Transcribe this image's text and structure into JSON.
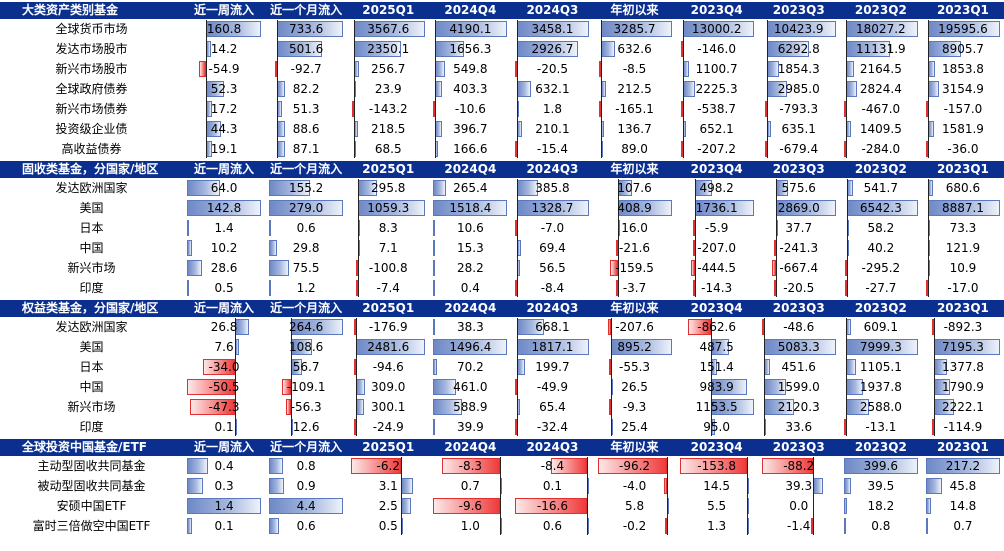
{
  "columns": [
    "近一周流入",
    "近一个月流入",
    "2025Q1",
    "2024Q4",
    "2024Q3",
    "年初以来",
    "2023Q4",
    "2023Q3",
    "2023Q2",
    "2023Q1"
  ],
  "sections": [
    {
      "title": "大类资产类别基金",
      "rows": [
        {
          "label": "全球货币市场",
          "values": [
            160.8,
            733.6,
            3567.6,
            4190.1,
            3458.1,
            3285.7,
            13000.2,
            10423.9,
            18027.2,
            19595.6
          ]
        },
        {
          "label": "发达市场股市",
          "values": [
            14.2,
            501.6,
            2350.1,
            1656.3,
            2926.7,
            632.6,
            -146.0,
            6292.8,
            11131.9,
            8905.7
          ]
        },
        {
          "label": "新兴市场股市",
          "values": [
            -54.9,
            -92.7,
            256.7,
            549.8,
            -20.5,
            -8.5,
            1100.7,
            1854.3,
            2164.5,
            1853.8
          ]
        },
        {
          "label": "全球政府债券",
          "values": [
            52.3,
            82.2,
            23.9,
            403.3,
            632.1,
            212.5,
            2225.3,
            2985.0,
            2824.4,
            3154.9
          ]
        },
        {
          "label": "新兴市场债券",
          "values": [
            17.2,
            51.3,
            -143.2,
            -10.6,
            1.8,
            -165.1,
            -538.7,
            -793.3,
            -467.0,
            -157.0
          ]
        },
        {
          "label": "投资级企业债",
          "values": [
            44.3,
            88.6,
            218.5,
            396.7,
            210.1,
            136.7,
            652.1,
            635.1,
            1409.5,
            1581.9
          ]
        },
        {
          "label": "高收益债券",
          "values": [
            19.1,
            87.1,
            68.5,
            166.6,
            -15.4,
            89.0,
            -207.2,
            -679.4,
            -284.0,
            -36.0
          ]
        }
      ]
    },
    {
      "title": "固收类基金，分国家/地区",
      "rows": [
        {
          "label": "发达欧洲国家",
          "values": [
            64.0,
            155.2,
            295.8,
            265.4,
            385.8,
            107.6,
            498.2,
            575.6,
            541.7,
            680.6
          ]
        },
        {
          "label": "美国",
          "values": [
            142.8,
            279.0,
            1059.3,
            1518.4,
            1328.7,
            408.9,
            1736.1,
            2869.0,
            6542.3,
            8887.1
          ]
        },
        {
          "label": "日本",
          "values": [
            1.4,
            0.6,
            8.3,
            10.6,
            -7.0,
            16.0,
            -5.9,
            37.7,
            58.2,
            73.3
          ]
        },
        {
          "label": "中国",
          "values": [
            10.2,
            29.8,
            7.1,
            15.3,
            69.4,
            -21.6,
            -207.0,
            -241.3,
            40.2,
            121.9
          ]
        },
        {
          "label": "新兴市场",
          "values": [
            28.6,
            75.5,
            -100.8,
            28.2,
            56.5,
            -159.5,
            -444.5,
            -667.4,
            -295.2,
            10.9
          ]
        },
        {
          "label": "印度",
          "values": [
            0.5,
            1.2,
            -7.4,
            0.4,
            -8.4,
            -3.7,
            -14.3,
            -20.5,
            -27.7,
            -17.0
          ]
        }
      ]
    },
    {
      "title": "权益类基金，分国家/地区",
      "rows": [
        {
          "label": "发达欧洲国家",
          "values": [
            26.8,
            264.6,
            -176.9,
            38.3,
            668.1,
            -207.6,
            -862.6,
            -48.6,
            609.1,
            -892.3
          ]
        },
        {
          "label": "美国",
          "values": [
            7.6,
            108.6,
            2481.6,
            1496.4,
            1817.1,
            895.2,
            487.5,
            5083.3,
            7999.3,
            7195.3
          ]
        },
        {
          "label": "日本",
          "values": [
            -34.0,
            56.7,
            -94.6,
            70.2,
            199.7,
            -55.3,
            151.4,
            451.6,
            1105.1,
            1377.8
          ]
        },
        {
          "label": "中国",
          "values": [
            -50.5,
            -109.1,
            309.0,
            461.0,
            -49.9,
            26.5,
            983.9,
            1599.0,
            1937.8,
            1790.9
          ]
        },
        {
          "label": "新兴市场",
          "values": [
            -47.3,
            -56.3,
            300.1,
            588.9,
            65.4,
            -9.3,
            1153.5,
            2120.3,
            2588.0,
            2222.1
          ]
        },
        {
          "label": "印度",
          "values": [
            0.1,
            12.6,
            -24.9,
            39.9,
            -32.4,
            25.4,
            95.0,
            33.6,
            -13.1,
            -114.9
          ]
        }
      ]
    },
    {
      "title": "全球投资中国基金/ETF",
      "rows": [
        {
          "label": "主动型固收共同基金",
          "values": [
            0.4,
            0.8,
            -6.2,
            -8.3,
            -8.4,
            -96.2,
            -153.8,
            -88.2,
            399.6,
            217.2
          ]
        },
        {
          "label": "被动型固收共同基金",
          "values": [
            0.3,
            0.9,
            3.1,
            0.7,
            0.1,
            -4.0,
            14.5,
            39.3,
            39.5,
            45.8
          ]
        },
        {
          "label": "安硕中国ETF",
          "values": [
            1.4,
            4.4,
            2.5,
            -9.6,
            -16.6,
            5.8,
            5.5,
            0.0,
            18.2,
            14.8
          ]
        },
        {
          "label": "富时三倍做空中国ETF",
          "values": [
            0.1,
            0.6,
            0.5,
            1.0,
            0.6,
            -0.2,
            1.3,
            -1.4,
            0.8,
            0.7
          ]
        }
      ]
    }
  ],
  "colors": {
    "header": "#0b2f8f",
    "positive": "#6f89c6",
    "negative": "#f03a3a"
  }
}
